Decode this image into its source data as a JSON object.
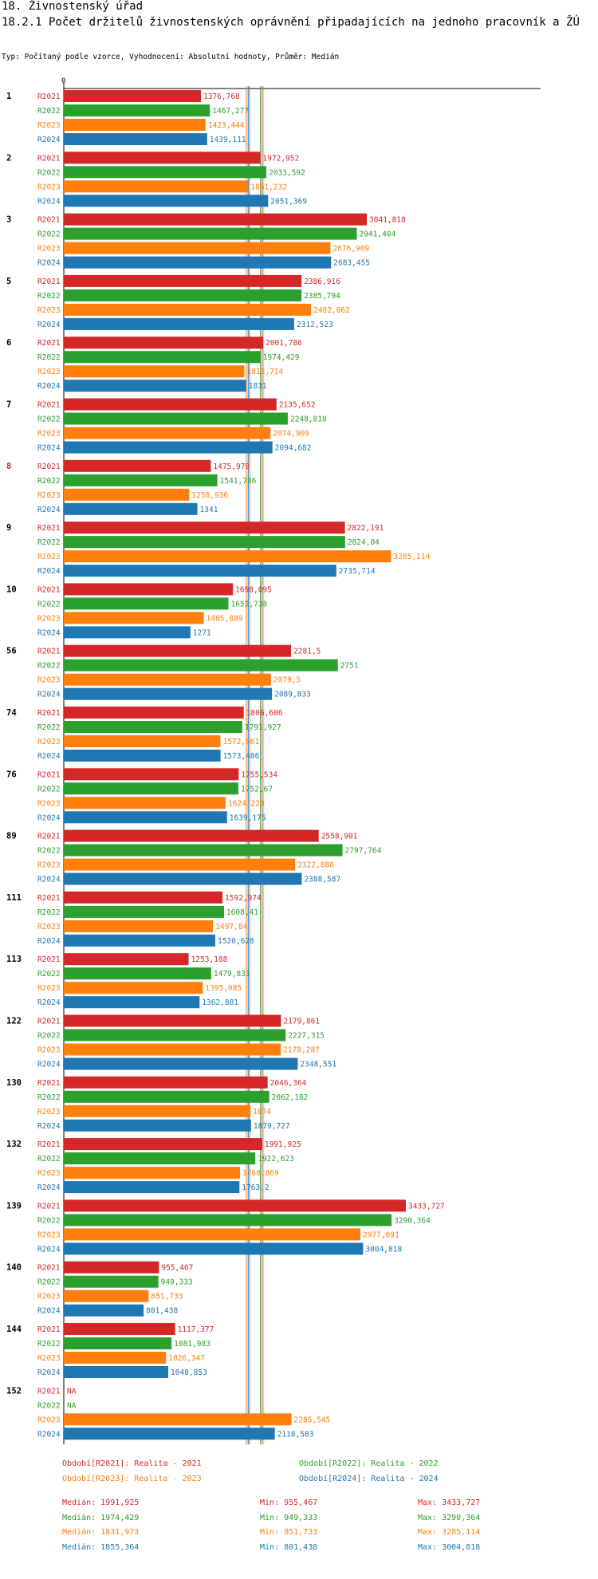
{
  "header": {
    "section": "18. Živnostenský úřad",
    "title": "18.2.1 Počet držitelů živnostenských oprávnění připadajících na jednoho pracovník a ŽÚ",
    "subtitle": "Typ: Počítaný podle vzorce, Vyhodnocení: Absolutní hodnoty, Průměr: Medián"
  },
  "chart_data": {
    "type": "bar",
    "orientation": "horizontal",
    "axis_zero_label": "0",
    "xlim": [
      0,
      3433.727
    ],
    "highlighted_category": "8",
    "series": [
      {
        "name": "R2021",
        "color": "#d62728"
      },
      {
        "name": "R2022",
        "color": "#2ca02c"
      },
      {
        "name": "R2023",
        "color": "#ff7f0e"
      },
      {
        "name": "R2024",
        "color": "#1f77b4"
      }
    ],
    "groups": [
      {
        "id": "1",
        "values": [
          1376.768,
          1467.277,
          1423.444,
          1439.111
        ],
        "labels": [
          "1376,768",
          "1467,277",
          "1423,444",
          "1439,111"
        ]
      },
      {
        "id": "2",
        "values": [
          1972.952,
          2033.592,
          1851.232,
          2051.369
        ],
        "labels": [
          "1972,952",
          "2033,592",
          "1851,232",
          "2051,369"
        ]
      },
      {
        "id": "3",
        "values": [
          3041.818,
          2941.404,
          2676.909,
          2683.455
        ],
        "labels": [
          "3041,818",
          "2941,404",
          "2676,909",
          "2683,455"
        ]
      },
      {
        "id": "5",
        "values": [
          2386.916,
          2385.794,
          2482.062,
          2312.523
        ],
        "labels": [
          "2386,916",
          "2385,794",
          "2482,062",
          "2312,523"
        ]
      },
      {
        "id": "6",
        "values": [
          2001.786,
          1974.429,
          1812.714,
          1831
        ],
        "labels": [
          "2001,786",
          "1974,429",
          "1812,714",
          "1831"
        ]
      },
      {
        "id": "7",
        "values": [
          2135.652,
          2248.818,
          2074.909,
          2094.682
        ],
        "labels": [
          "2135,652",
          "2248,818",
          "2074,909",
          "2094,682"
        ]
      },
      {
        "id": "8",
        "values": [
          1475.978,
          1541.786,
          1258.936,
          1341
        ],
        "labels": [
          "1475,978",
          "1541,786",
          "1258,936",
          "1341"
        ]
      },
      {
        "id": "9",
        "values": [
          2822.191,
          2824.04,
          3285.114,
          2735.714
        ],
        "labels": [
          "2822,191",
          "2824,04",
          "3285,114",
          "2735,714"
        ]
      },
      {
        "id": "10",
        "values": [
          1698.095,
          1652.738,
          1405.889,
          1271
        ],
        "labels": [
          "1698,095",
          "1652,738",
          "1405,889",
          "1271"
        ]
      },
      {
        "id": "56",
        "values": [
          2281.5,
          2751,
          2079.5,
          2089.833
        ],
        "labels": [
          "2281,5",
          "2751",
          "2079,5",
          "2089,833"
        ]
      },
      {
        "id": "74",
        "values": [
          1806.606,
          1791.927,
          1572.661,
          1573.486
        ],
        "labels": [
          "1806,606",
          "1791,927",
          "1572,661",
          "1573,486"
        ]
      },
      {
        "id": "76",
        "values": [
          1755.534,
          1752.67,
          1624.223,
          1639.175
        ],
        "labels": [
          "1755,534",
          "1752,67",
          "1624,223",
          "1639,175"
        ]
      },
      {
        "id": "89",
        "values": [
          2558.901,
          2797.764,
          2322.888,
          2388.587
        ],
        "labels": [
          "2558,901",
          "2797,764",
          "2322,888",
          "2388,587"
        ]
      },
      {
        "id": "111",
        "values": [
          1592.974,
          1608.41,
          1497.84,
          1520.628
        ],
        "labels": [
          "1592,974",
          "1608,41",
          "1497,84",
          "1520,628"
        ]
      },
      {
        "id": "113",
        "values": [
          1253.188,
          1479.831,
          1395.085,
          1362.881
        ],
        "labels": [
          "1253,188",
          "1479,831",
          "1395,085",
          "1362,881"
        ]
      },
      {
        "id": "122",
        "values": [
          2179.861,
          2227.315,
          2178.287,
          2348.551
        ],
        "labels": [
          "2179,861",
          "2227,315",
          "2178,287",
          "2348,551"
        ]
      },
      {
        "id": "130",
        "values": [
          2046.364,
          2062.182,
          1874,
          1879.727
        ],
        "labels": [
          "2046,364",
          "2062,182",
          "1874",
          "1879,727"
        ]
      },
      {
        "id": "132",
        "values": [
          1991.925,
          1922.623,
          1768.869,
          1763.2
        ],
        "labels": [
          "1991,925",
          "1922,623",
          "1768,869",
          "1763,2"
        ]
      },
      {
        "id": "139",
        "values": [
          3433.727,
          3290.364,
          2977.091,
          3004.818
        ],
        "labels": [
          "3433,727",
          "3290,364",
          "2977,091",
          "3004,818"
        ]
      },
      {
        "id": "140",
        "values": [
          955.467,
          949.333,
          851.733,
          801.438
        ],
        "labels": [
          "955,467",
          "949,333",
          "851,733",
          "801,438"
        ]
      },
      {
        "id": "144",
        "values": [
          1117.377,
          1081.983,
          1026.347,
          1048.853
        ],
        "labels": [
          "1117,377",
          "1081,983",
          "1026,347",
          "1048,853"
        ]
      },
      {
        "id": "152",
        "values": [
          null,
          null,
          2285.545,
          2118.583
        ],
        "labels": [
          "NA",
          "NA",
          "2285,545",
          "2118,583"
        ]
      }
    ],
    "median_lines": [
      1991.925,
      1974.429,
      1831.973,
      1855.364
    ]
  },
  "legend": [
    {
      "text": "Období[R2021]: Realita - 2021",
      "color": "#d62728"
    },
    {
      "text": "Období[R2022]: Realita - 2022",
      "color": "#2ca02c"
    },
    {
      "text": "Období[R2023]: Realita - 2023",
      "color": "#ff7f0e"
    },
    {
      "text": "Období[R2024]: Realita - 2024",
      "color": "#1f77b4"
    }
  ],
  "stats": [
    {
      "median": "Medián: 1991,925",
      "min": "Min: 955,467",
      "max": "Max: 3433,727",
      "color": "#d62728"
    },
    {
      "median": "Medián: 1974,429",
      "min": "Min: 949,333",
      "max": "Max: 3290,364",
      "color": "#2ca02c"
    },
    {
      "median": "Medián: 1831,973",
      "min": "Min: 851,733",
      "max": "Max: 3285,114",
      "color": "#ff7f0e"
    },
    {
      "median": "Medián: 1855,364",
      "min": "Min: 801,438",
      "max": "Max: 3004,818",
      "color": "#1f77b4"
    }
  ]
}
